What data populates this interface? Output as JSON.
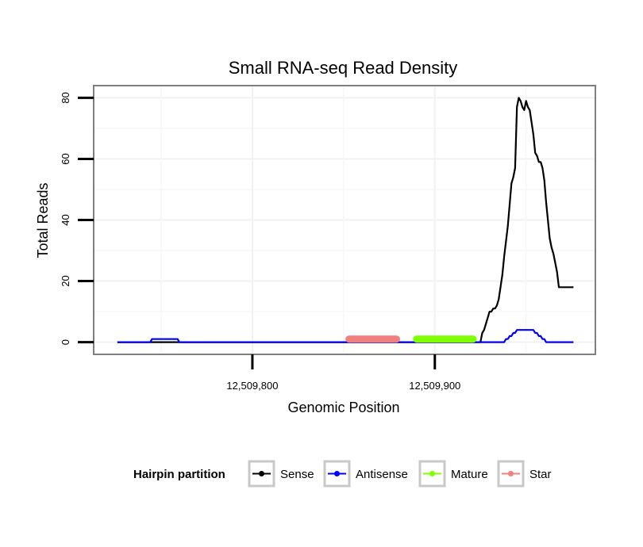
{
  "chart_data": {
    "type": "line",
    "title": "Small RNA-seq Read Density",
    "xlabel": "Genomic Position",
    "ylabel": "Total Reads",
    "xlim": [
      12509713,
      12509988
    ],
    "ylim": [
      -4,
      84
    ],
    "x_ticks": [
      12509800,
      12509900
    ],
    "x_tick_labels": [
      "12,509,800",
      "12,509,900"
    ],
    "y_ticks": [
      0,
      20,
      40,
      60,
      80
    ],
    "y_tick_labels": [
      "0",
      "20",
      "40",
      "60",
      "80"
    ],
    "grid": true,
    "legend": {
      "title": "Hairpin partition",
      "position": "bottom",
      "entries": [
        "Sense",
        "Antisense",
        "Mature",
        "Star"
      ]
    },
    "series": [
      {
        "name": "Sense",
        "color": "#000000",
        "x": [
          12509726,
          12509912,
          12509925,
          12509926,
          12509927,
          12509928,
          12509929,
          12509930,
          12509931,
          12509932,
          12509933,
          12509934,
          12509935,
          12509936,
          12509937,
          12509938,
          12509939,
          12509940,
          12509941,
          12509942,
          12509943,
          12509944,
          12509945,
          12509946,
          12509947,
          12509948,
          12509949,
          12509950,
          12509951,
          12509952,
          12509953,
          12509954,
          12509955,
          12509956,
          12509957,
          12509958,
          12509959,
          12509960,
          12509961,
          12509962,
          12509963,
          12509964,
          12509965,
          12509966,
          12509967,
          12509968,
          12509969,
          12509970,
          12509971,
          12509972,
          12509973,
          12509974,
          12509975,
          12509976
        ],
        "y": [
          0,
          0,
          0,
          3,
          4,
          6,
          8,
          10,
          10,
          11,
          11,
          12,
          14,
          18,
          22,
          28,
          33,
          38,
          45,
          52,
          54,
          57,
          77,
          80,
          79,
          77,
          76,
          79,
          77,
          76,
          72,
          68,
          62,
          61,
          59,
          59,
          57,
          53,
          46,
          40,
          34,
          31,
          29,
          26,
          23,
          18,
          18,
          18,
          18,
          18,
          18,
          18,
          18,
          18
        ]
      },
      {
        "name": "Antisense",
        "color": "#0000ff",
        "x": [
          12509726,
          12509744,
          12509745,
          12509759,
          12509760,
          12509925,
          12509938,
          12509939,
          12509940,
          12509941,
          12509942,
          12509943,
          12509944,
          12509945,
          12509946,
          12509947,
          12509948,
          12509949,
          12509950,
          12509951,
          12509952,
          12509953,
          12509954,
          12509955,
          12509956,
          12509957,
          12509958,
          12509959,
          12509960,
          12509961,
          12509962,
          12509963,
          12509964,
          12509965,
          12509966,
          12509967,
          12509968,
          12509969,
          12509970,
          12509971,
          12509972,
          12509973,
          12509974,
          12509975,
          12509976
        ],
        "y": [
          0,
          0,
          1,
          1,
          0,
          0,
          0,
          1,
          1,
          2,
          2,
          3,
          3,
          4,
          4,
          4,
          4,
          4,
          4,
          4,
          4,
          4,
          4,
          3,
          3,
          2,
          2,
          1,
          1,
          0,
          0,
          0,
          0,
          0,
          0,
          0,
          0,
          0,
          0,
          0,
          0,
          0,
          0,
          0,
          0
        ]
      },
      {
        "name": "Mature",
        "color": "#80ff00",
        "x": [
          12509890,
          12509921
        ],
        "y": [
          1,
          1
        ]
      },
      {
        "name": "Star",
        "color": "#f08080",
        "x": [
          12509853,
          12509879
        ],
        "y": [
          1,
          1
        ]
      }
    ]
  }
}
